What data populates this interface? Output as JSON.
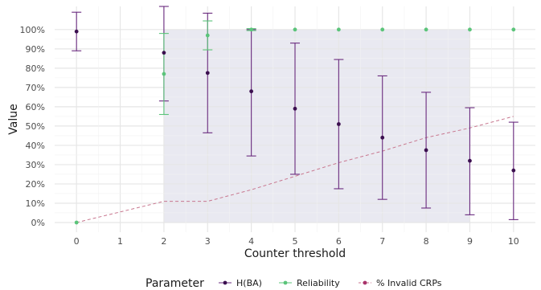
{
  "chart_data": {
    "type": "scatter",
    "xlabel": "Counter threshold",
    "ylabel": "Value",
    "xlim": [
      -0.5,
      10.5
    ],
    "ylim": [
      -0.05,
      1.12
    ],
    "x_ticks": [
      0,
      1,
      2,
      3,
      4,
      5,
      6,
      7,
      8,
      9,
      10
    ],
    "y_ticks": [
      0,
      0.1,
      0.2,
      0.3,
      0.4,
      0.5,
      0.6,
      0.7,
      0.8,
      0.9,
      1.0
    ],
    "y_tick_labels": [
      "0%",
      "10%",
      "20%",
      "30%",
      "40%",
      "50%",
      "60%",
      "70%",
      "80%",
      "90%",
      "100%"
    ],
    "grid": true,
    "shaded_region": {
      "x": [
        2,
        9
      ],
      "y": [
        0,
        1.0
      ],
      "color": "#e9e9f1"
    },
    "legend": {
      "title": "Parameter",
      "position": "bottom"
    },
    "series": [
      {
        "name": "H(BA)",
        "color": "#3b0f4f",
        "bar_color": "#6a2b7f",
        "marker": "point-with-errorbars",
        "points": [
          {
            "x": 0,
            "y": 0.99,
            "lo": 0.89,
            "hi": 1.09
          },
          {
            "x": 2,
            "y": 0.88,
            "lo": 0.63,
            "hi": 1.12
          },
          {
            "x": 3,
            "y": 0.775,
            "lo": 0.465,
            "hi": 1.085
          },
          {
            "x": 4,
            "y": 0.68,
            "lo": 0.345,
            "hi": 1.0
          },
          {
            "x": 5,
            "y": 0.59,
            "lo": 0.25,
            "hi": 0.93
          },
          {
            "x": 6,
            "y": 0.51,
            "lo": 0.175,
            "hi": 0.845
          },
          {
            "x": 7,
            "y": 0.44,
            "lo": 0.12,
            "hi": 0.76
          },
          {
            "x": 8,
            "y": 0.375,
            "lo": 0.075,
            "hi": 0.675
          },
          {
            "x": 9,
            "y": 0.32,
            "lo": 0.04,
            "hi": 0.595
          },
          {
            "x": 10,
            "y": 0.27,
            "lo": 0.015,
            "hi": 0.52
          }
        ]
      },
      {
        "name": "Reliability",
        "color": "#5bc47a",
        "bar_color": "#5bc47a",
        "marker": "point-with-errorbars",
        "points": [
          {
            "x": 0,
            "y": 0.0
          },
          {
            "x": 2,
            "y": 0.77,
            "lo": 0.56,
            "hi": 0.98
          },
          {
            "x": 3,
            "y": 0.97,
            "lo": 0.895,
            "hi": 1.045
          },
          {
            "x": 4,
            "y": 1.0,
            "lo": 0.995,
            "hi": 1.005
          },
          {
            "x": 5,
            "y": 1.0
          },
          {
            "x": 6,
            "y": 1.0
          },
          {
            "x": 7,
            "y": 1.0
          },
          {
            "x": 8,
            "y": 1.0
          },
          {
            "x": 9,
            "y": 1.0
          },
          {
            "x": 10,
            "y": 1.0
          }
        ]
      },
      {
        "name": "% Invalid CRPs",
        "color": "#c8778f",
        "legend_color": "#a8336b",
        "marker": "dashed-line",
        "points": [
          {
            "x": 0,
            "y": 0.0
          },
          {
            "x": 2,
            "y": 0.11
          },
          {
            "x": 3,
            "y": 0.11
          },
          {
            "x": 4,
            "y": 0.17
          },
          {
            "x": 5,
            "y": 0.24
          },
          {
            "x": 6,
            "y": 0.31
          },
          {
            "x": 7,
            "y": 0.37
          },
          {
            "x": 8,
            "y": 0.44
          },
          {
            "x": 9,
            "y": 0.49
          },
          {
            "x": 10,
            "y": 0.55
          }
        ]
      }
    ]
  }
}
